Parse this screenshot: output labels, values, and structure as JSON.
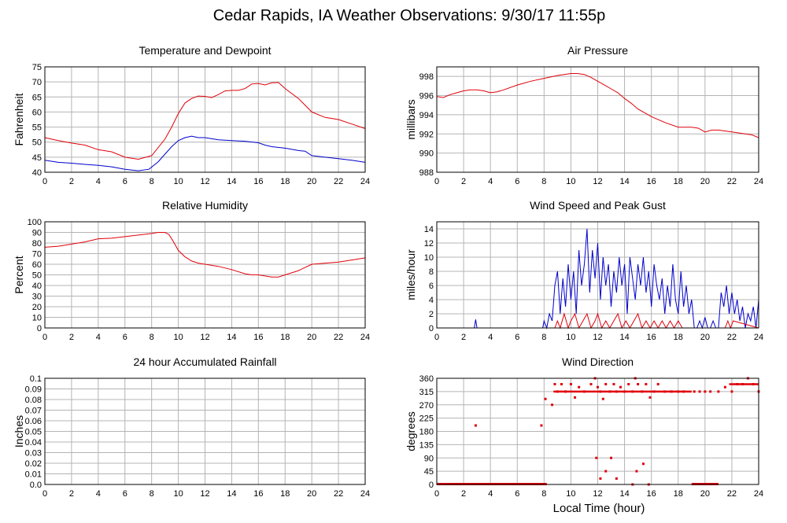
{
  "page": {
    "title": "Cedar Rapids, IA Weather Observations: 9/30/17 11:55p",
    "x_axis_label": "Local Time (hour)"
  },
  "colors": {
    "primary": "#e0000a",
    "secondary": "#0000cc",
    "grid": "#b4b4b4",
    "frame": "#000000"
  },
  "chart_data": [
    {
      "id": "temp",
      "type": "line",
      "title": "Temperature and Dewpoint",
      "ylabel": "Fahrenheit",
      "ylim": [
        40,
        75
      ],
      "yticks": [
        "40",
        "45",
        "50",
        "55",
        "60",
        "65",
        "70",
        "75"
      ],
      "xlim": [
        0,
        24
      ],
      "xticks": [
        "0",
        "2",
        "4",
        "6",
        "8",
        "10",
        "12",
        "14",
        "16",
        "18",
        "20",
        "22",
        "24"
      ],
      "grid": true,
      "series": [
        {
          "color": "#e0000a",
          "x": [
            0,
            1,
            2,
            3,
            4,
            5,
            6,
            7,
            8,
            9,
            9.5,
            10,
            10.5,
            11,
            11.5,
            12,
            12.5,
            13,
            13.5,
            14,
            14.5,
            15,
            15.5,
            16,
            16.5,
            17,
            17.5,
            18,
            19,
            20,
            21,
            22,
            23,
            24
          ],
          "y": [
            51.5,
            50.5,
            49.7,
            49,
            47.5,
            46.8,
            45,
            44.3,
            45.5,
            51,
            55,
            59.5,
            63,
            64.5,
            65.3,
            65.2,
            64.8,
            65.8,
            67,
            67.2,
            67.2,
            67.8,
            69.3,
            69.5,
            69,
            69.7,
            69.8,
            67.8,
            64.5,
            60,
            58.2,
            57.5,
            56,
            54.5
          ]
        },
        {
          "color": "#0000cc",
          "x": [
            0,
            1,
            2,
            3,
            4,
            5,
            6,
            7,
            7.8,
            8.5,
            9,
            9.5,
            10,
            10.5,
            11,
            11.5,
            12,
            13,
            14,
            15,
            16,
            16.5,
            17,
            18,
            19,
            19.5,
            20,
            21,
            22,
            23,
            24
          ],
          "y": [
            44,
            43.3,
            43,
            42.6,
            42.3,
            41.8,
            41,
            40.5,
            41,
            43.5,
            46,
            48.5,
            50.5,
            51.5,
            52,
            51.5,
            51.5,
            50.8,
            50.5,
            50.3,
            49.8,
            49,
            48.5,
            48,
            47.2,
            47,
            45.5,
            45,
            44.5,
            44,
            43.3
          ]
        }
      ]
    },
    {
      "id": "pressure",
      "type": "line",
      "title": "Air Pressure",
      "ylabel": "millibars",
      "ylim": [
        988,
        999
      ],
      "yticks_at": [
        988,
        990,
        992,
        994,
        996,
        998
      ],
      "yticks": [
        "988",
        "990",
        "992",
        "994",
        "996",
        "998"
      ],
      "xlim": [
        0,
        24
      ],
      "xticks": [
        "0",
        "2",
        "4",
        "6",
        "8",
        "10",
        "12",
        "14",
        "16",
        "18",
        "20",
        "22",
        "24"
      ],
      "grid": true,
      "series": [
        {
          "color": "#e0000a",
          "x": [
            0,
            0.5,
            1,
            1.5,
            2,
            2.5,
            3,
            3.5,
            4,
            4.5,
            5,
            6,
            7,
            8,
            9,
            9.5,
            10,
            10.5,
            11,
            11.5,
            12,
            12.5,
            13,
            13.5,
            14,
            14.5,
            15,
            16,
            17,
            18,
            19,
            19.5,
            20,
            20.5,
            21,
            22,
            23,
            23.5,
            24
          ],
          "y": [
            995.9,
            995.8,
            996.1,
            996.3,
            996.5,
            996.6,
            996.6,
            996.5,
            996.3,
            996.4,
            996.6,
            997.1,
            997.5,
            997.8,
            998.1,
            998.2,
            998.3,
            998.3,
            998.2,
            997.9,
            997.5,
            997.1,
            996.7,
            996.3,
            995.7,
            995.2,
            994.6,
            993.8,
            993.2,
            992.7,
            992.7,
            992.6,
            992.2,
            992.4,
            992.4,
            992.2,
            992,
            991.9,
            991.6
          ]
        }
      ]
    },
    {
      "id": "humidity",
      "type": "line",
      "title": "Relative Humidity",
      "ylabel": "Percent",
      "ylim": [
        0,
        100
      ],
      "yticks": [
        "0",
        "10",
        "20",
        "30",
        "40",
        "50",
        "60",
        "70",
        "80",
        "90",
        "100"
      ],
      "xlim": [
        0,
        24
      ],
      "xticks": [
        "0",
        "2",
        "4",
        "6",
        "8",
        "10",
        "12",
        "14",
        "16",
        "18",
        "20",
        "22",
        "24"
      ],
      "grid": true,
      "series": [
        {
          "color": "#e0000a",
          "x": [
            0,
            1,
            2,
            3,
            4,
            5,
            6,
            7,
            8,
            8.5,
            9,
            9.3,
            9.6,
            10,
            10.5,
            11,
            11.5,
            12,
            13,
            14,
            15,
            15.5,
            16,
            16.5,
            17,
            17.5,
            18,
            19,
            20,
            21,
            22,
            23,
            24
          ],
          "y": [
            76,
            77,
            79,
            81,
            84,
            84.5,
            86,
            87.5,
            89,
            90,
            90,
            88,
            82,
            73,
            67,
            63,
            61,
            60,
            58,
            55,
            51,
            50,
            50,
            49,
            48,
            48,
            50,
            54,
            60,
            61,
            62,
            64,
            66
          ]
        }
      ]
    },
    {
      "id": "wind",
      "type": "line",
      "title": "Wind Speed and Peak Gust",
      "ylabel": "miles/hour",
      "ylim": [
        0,
        15
      ],
      "yticks_at": [
        0,
        2,
        4,
        6,
        8,
        10,
        12,
        14
      ],
      "yticks": [
        "0",
        "2",
        "4",
        "6",
        "8",
        "10",
        "12",
        "14"
      ],
      "xlim": [
        0,
        24
      ],
      "xticks": [
        "0",
        "2",
        "4",
        "6",
        "8",
        "10",
        "12",
        "14",
        "16",
        "18",
        "20",
        "22",
        "24"
      ],
      "grid": true,
      "series": [
        {
          "color": "#0000cc",
          "x": [
            0,
            2.8,
            2.9,
            3.0,
            7.9,
            8.0,
            8.2,
            8.4,
            8.6,
            8.8,
            9.0,
            9.2,
            9.4,
            9.6,
            9.8,
            10.0,
            10.2,
            10.4,
            10.6,
            10.8,
            11.0,
            11.2,
            11.4,
            11.6,
            11.8,
            12.0,
            12.2,
            12.4,
            12.6,
            12.8,
            13.0,
            13.2,
            13.4,
            13.6,
            13.8,
            14.0,
            14.2,
            14.4,
            14.6,
            14.8,
            15.0,
            15.2,
            15.4,
            15.6,
            15.8,
            16.0,
            16.2,
            16.4,
            16.6,
            16.8,
            17.0,
            17.2,
            17.4,
            17.6,
            17.8,
            18.0,
            18.2,
            18.4,
            18.6,
            18.8,
            19.0,
            19.2,
            19.4,
            19.6,
            19.8,
            20.0,
            20.2,
            20.4,
            20.6,
            20.8,
            21.0,
            21.2,
            21.4,
            21.6,
            21.8,
            22.0,
            22.2,
            22.4,
            22.6,
            22.8,
            23.0,
            23.2,
            23.4,
            23.6,
            23.8,
            24.0
          ],
          "y": [
            0,
            0,
            1.2,
            0,
            0,
            1,
            0,
            2,
            1,
            6,
            8,
            2,
            7,
            3,
            9,
            4,
            8,
            2,
            11,
            6,
            9,
            14,
            5,
            11,
            7,
            12,
            4,
            10,
            6,
            9,
            3,
            8,
            5,
            10,
            6,
            9,
            2,
            10,
            7,
            4,
            9,
            6,
            10,
            5,
            8,
            3,
            9,
            6,
            4,
            7,
            2,
            6,
            3,
            9,
            4,
            2,
            8,
            3,
            6,
            2,
            4,
            0,
            0,
            1,
            0,
            1.5,
            0,
            0,
            1,
            0,
            0,
            5,
            3,
            6,
            2,
            5,
            2,
            4,
            1,
            3,
            0,
            2,
            1,
            3,
            0,
            4
          ]
        },
        {
          "color": "#e0000a",
          "x": [
            0,
            8.8,
            9.0,
            9.2,
            9.5,
            9.8,
            10.0,
            10.3,
            10.6,
            10.9,
            11.2,
            11.5,
            11.8,
            12.0,
            12.3,
            12.6,
            12.9,
            13.2,
            13.5,
            13.8,
            14.1,
            14.4,
            14.7,
            15.0,
            15.3,
            15.6,
            15.9,
            16.2,
            16.5,
            16.8,
            17.1,
            17.4,
            17.7,
            18.0,
            18.3,
            21.5,
            21.7,
            21.9,
            22.1,
            24
          ],
          "y": [
            0,
            0,
            1,
            0,
            2,
            0,
            1,
            2,
            0,
            1,
            2,
            0,
            1,
            2,
            0,
            1,
            0,
            1,
            2,
            0,
            1,
            0,
            1,
            2,
            0,
            1,
            0,
            1,
            0,
            1,
            0,
            1,
            0,
            1,
            0,
            0,
            1,
            0,
            1,
            0
          ]
        }
      ]
    },
    {
      "id": "rain",
      "type": "line",
      "title": "24 hour Accumulated Rainfall",
      "ylabel": "Inches",
      "ylim": [
        0,
        0.1
      ],
      "yticks": [
        "0.0",
        "0.01",
        "0.02",
        "0.03",
        "0.04",
        "0.05",
        "0.06",
        "0.07",
        "0.08",
        "0.09",
        "0.1"
      ],
      "xlim": [
        0,
        24
      ],
      "xticks": [
        "0",
        "2",
        "4",
        "6",
        "8",
        "10",
        "12",
        "14",
        "16",
        "18",
        "20",
        "22",
        "24"
      ],
      "grid": true,
      "series": [
        {
          "color": "#e0000a",
          "x": [
            0,
            24
          ],
          "y": [
            0,
            0
          ]
        }
      ]
    },
    {
      "id": "direction",
      "type": "scatter",
      "title": "Wind Direction",
      "ylabel": "degrees",
      "ylim": [
        0,
        360
      ],
      "yticks_at": [
        0,
        45,
        90,
        135,
        180,
        225,
        270,
        315,
        360
      ],
      "yticks": [
        "0",
        "45",
        "90",
        "135",
        "180",
        "225",
        "270",
        "315",
        "360"
      ],
      "xlim": [
        0,
        24
      ],
      "xticks": [
        "0",
        "2",
        "4",
        "6",
        "8",
        "10",
        "12",
        "14",
        "16",
        "18",
        "20",
        "22",
        "24"
      ],
      "grid": true,
      "series": [
        {
          "color": "#e0000a",
          "x": [
            2.9,
            7.8,
            8.1,
            8.6,
            8.8,
            9.0,
            9.3,
            9.6,
            10.0,
            10.3,
            10.6,
            11.0,
            11.5,
            11.8,
            12.0,
            12.2,
            12.4,
            12.6,
            12.9,
            13.2,
            13.4,
            13.7,
            14.0,
            14.3,
            14.6,
            14.8,
            15.0,
            15.3,
            15.6,
            15.9,
            16.2,
            16.5,
            17.0,
            17.5,
            18.0,
            18.4,
            19.2,
            19.6,
            20.0,
            20.4,
            21.0,
            21.5,
            22.0,
            22.4,
            22.8,
            23.2,
            23.6,
            24.0,
            12.2,
            12.6,
            13.4,
            14.9,
            15.4,
            11.9,
            13.0,
            14.6,
            15.8
          ],
          "y": [
            200,
            200,
            290,
            270,
            340,
            315,
            340,
            315,
            340,
            295,
            330,
            315,
            340,
            360,
            330,
            315,
            290,
            340,
            315,
            340,
            315,
            330,
            315,
            340,
            315,
            360,
            340,
            315,
            340,
            295,
            315,
            340,
            315,
            315,
            315,
            315,
            315,
            315,
            315,
            315,
            315,
            330,
            315,
            340,
            340,
            360,
            340,
            315,
            20,
            45,
            20,
            45,
            70,
            90,
            90,
            0,
            0
          ]
        }
      ]
    }
  ]
}
